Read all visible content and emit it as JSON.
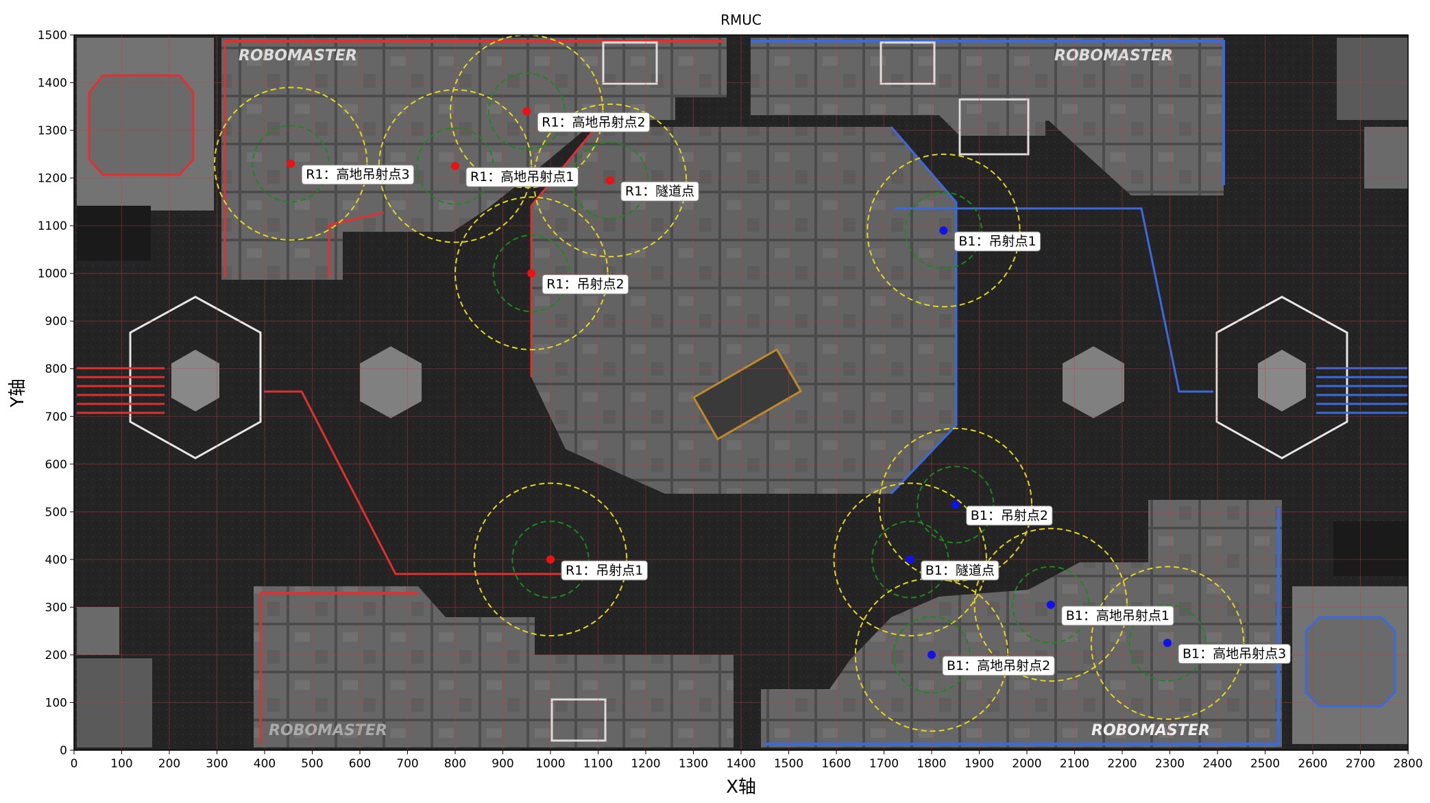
{
  "chart_data": {
    "type": "scatter",
    "title": "RMUC",
    "xlabel": "X轴",
    "ylabel": "Y轴",
    "xlim": [
      0,
      2800
    ],
    "ylim": [
      0,
      1500
    ],
    "x_ticks": [
      0,
      100,
      200,
      300,
      400,
      500,
      600,
      700,
      800,
      900,
      1000,
      1100,
      1200,
      1300,
      1400,
      1500,
      1600,
      1700,
      1800,
      1900,
      2000,
      2100,
      2200,
      2300,
      2400,
      2500,
      2600,
      2700,
      2800
    ],
    "y_ticks": [
      0,
      100,
      200,
      300,
      400,
      500,
      600,
      700,
      800,
      900,
      1000,
      1100,
      1200,
      1300,
      1400,
      1500
    ],
    "grid": true,
    "colors": {
      "red_team": "#ee1111",
      "blue_team": "#1111ee",
      "inner_ring": "#1a8a1a",
      "outer_ring": "#e6d81a",
      "grid": "#c04040"
    },
    "points": [
      {
        "team": "red",
        "label": "R1：高地吊射点3",
        "x": 455,
        "y": 1230,
        "inner_r": 80,
        "outer_r": 160
      },
      {
        "team": "red",
        "label": "R1：高地吊射点1",
        "x": 800,
        "y": 1225,
        "inner_r": 80,
        "outer_r": 160
      },
      {
        "team": "red",
        "label": "R1：高地吊射点2",
        "x": 950,
        "y": 1340,
        "inner_r": 80,
        "outer_r": 160
      },
      {
        "team": "red",
        "label": "R1：隧道点",
        "x": 1125,
        "y": 1195,
        "inner_r": 80,
        "outer_r": 160
      },
      {
        "team": "red",
        "label": "R1：吊射点2",
        "x": 960,
        "y": 1000,
        "inner_r": 80,
        "outer_r": 160
      },
      {
        "team": "red",
        "label": "R1：吊射点1",
        "x": 1000,
        "y": 400,
        "inner_r": 80,
        "outer_r": 160
      },
      {
        "team": "blue",
        "label": "B1：吊射点1",
        "x": 1825,
        "y": 1090,
        "inner_r": 80,
        "outer_r": 160
      },
      {
        "team": "blue",
        "label": "B1：吊射点2",
        "x": 1850,
        "y": 515,
        "inner_r": 80,
        "outer_r": 160
      },
      {
        "team": "blue",
        "label": "B1：隧道点",
        "x": 1755,
        "y": 400,
        "inner_r": 80,
        "outer_r": 160
      },
      {
        "team": "blue",
        "label": "B1：高地吊射点1",
        "x": 2050,
        "y": 305,
        "inner_r": 80,
        "outer_r": 160
      },
      {
        "team": "blue",
        "label": "B1：高地吊射点2",
        "x": 1800,
        "y": 200,
        "inner_r": 80,
        "outer_r": 160
      },
      {
        "team": "blue",
        "label": "B1：高地吊射点3",
        "x": 2295,
        "y": 225,
        "inner_r": 80,
        "outer_r": 160
      }
    ],
    "map_logos": [
      "ROBOMASTER",
      "ROBOMASTER",
      "ROBOMASTER",
      "ROBOMASTER"
    ]
  }
}
